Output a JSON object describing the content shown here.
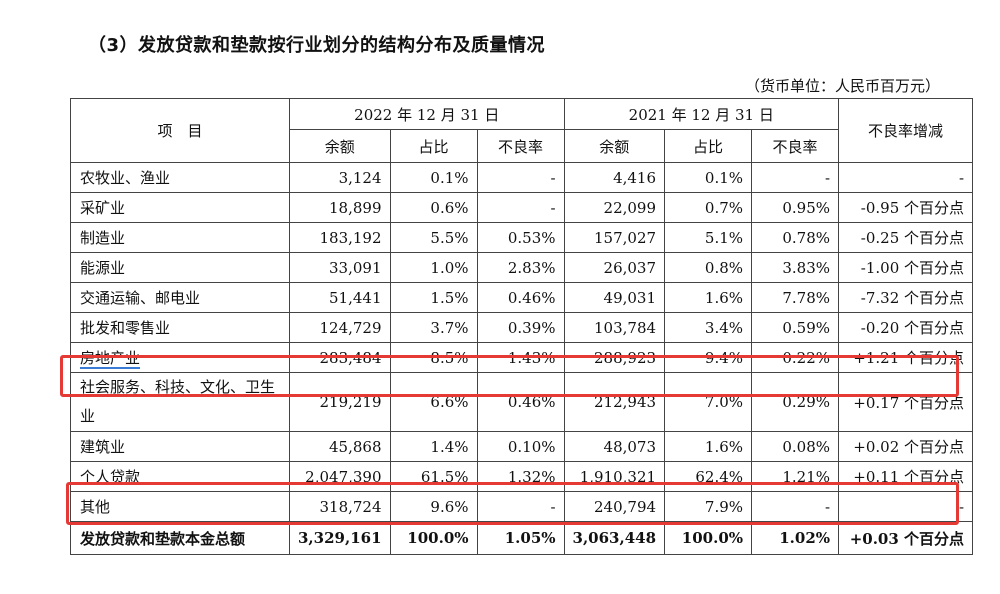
{
  "title": "（3）发放贷款和垫款按行业划分的结构分布及质量情况",
  "unit_note": "（货币单位：人民币百万元）",
  "header": {
    "item": "项　目",
    "year_a": "2022 年 12 月 31 日",
    "year_b": "2021 年 12 月 31 日",
    "change": "不良率增减",
    "sub": [
      "余额",
      "占比",
      "不良率",
      "余额",
      "占比",
      "不良率"
    ]
  },
  "rows": [
    {
      "name": "农牧业、渔业",
      "a_bal": "3,124",
      "a_pct": "0.1%",
      "a_npl": "-",
      "b_bal": "4,416",
      "b_pct": "0.1%",
      "b_npl": "-",
      "chg": "-"
    },
    {
      "name": "采矿业",
      "a_bal": "18,899",
      "a_pct": "0.6%",
      "a_npl": "-",
      "b_bal": "22,099",
      "b_pct": "0.7%",
      "b_npl": "0.95%",
      "chg": "-0.95 个百分点"
    },
    {
      "name": "制造业",
      "a_bal": "183,192",
      "a_pct": "5.5%",
      "a_npl": "0.53%",
      "b_bal": "157,027",
      "b_pct": "5.1%",
      "b_npl": "0.78%",
      "chg": "-0.25 个百分点"
    },
    {
      "name": "能源业",
      "a_bal": "33,091",
      "a_pct": "1.0%",
      "a_npl": "2.83%",
      "b_bal": "26,037",
      "b_pct": "0.8%",
      "b_npl": "3.83%",
      "chg": "-1.00 个百分点"
    },
    {
      "name": "交通运输、邮电业",
      "a_bal": "51,441",
      "a_pct": "1.5%",
      "a_npl": "0.46%",
      "b_bal": "49,031",
      "b_pct": "1.6%",
      "b_npl": "7.78%",
      "chg": "-7.32 个百分点"
    },
    {
      "name": "批发和零售业",
      "a_bal": "124,729",
      "a_pct": "3.7%",
      "a_npl": "0.39%",
      "b_bal": "103,784",
      "b_pct": "3.4%",
      "b_npl": "0.59%",
      "chg": "-0.20 个百分点"
    },
    {
      "name": "房地产业",
      "a_bal": "283,484",
      "a_pct": "8.5%",
      "a_npl": "1.43%",
      "b_bal": "288,923",
      "b_pct": "9.4%",
      "b_npl": "0.22%",
      "chg": "+1.21 个百分点"
    },
    {
      "name": "社会服务、科技、文化、卫生业",
      "a_bal": "219,219",
      "a_pct": "6.6%",
      "a_npl": "0.46%",
      "b_bal": "212,943",
      "b_pct": "7.0%",
      "b_npl": "0.29%",
      "chg": "+0.17 个百分点"
    },
    {
      "name": "建筑业",
      "a_bal": "45,868",
      "a_pct": "1.4%",
      "a_npl": "0.10%",
      "b_bal": "48,073",
      "b_pct": "1.6%",
      "b_npl": "0.08%",
      "chg": "+0.02 个百分点"
    },
    {
      "name": "个人贷款",
      "a_bal": "2,047,390",
      "a_pct": "61.5%",
      "a_npl": "1.32%",
      "b_bal": "1,910,321",
      "b_pct": "62.4%",
      "b_npl": "1.21%",
      "chg": "+0.11 个百分点"
    },
    {
      "name": "其他",
      "a_bal": "318,724",
      "a_pct": "9.6%",
      "a_npl": "-",
      "b_bal": "240,794",
      "b_pct": "7.9%",
      "b_npl": "-",
      "chg": "-"
    },
    {
      "name": "发放贷款和垫款本金总额",
      "a_bal": "3,329,161",
      "a_pct": "100.0%",
      "a_npl": "1.05%",
      "b_bal": "3,063,448",
      "b_pct": "100.0%",
      "b_npl": "1.02%",
      "chg": "+0.03 个百分点"
    }
  ],
  "highlight_color": "#e53935"
}
